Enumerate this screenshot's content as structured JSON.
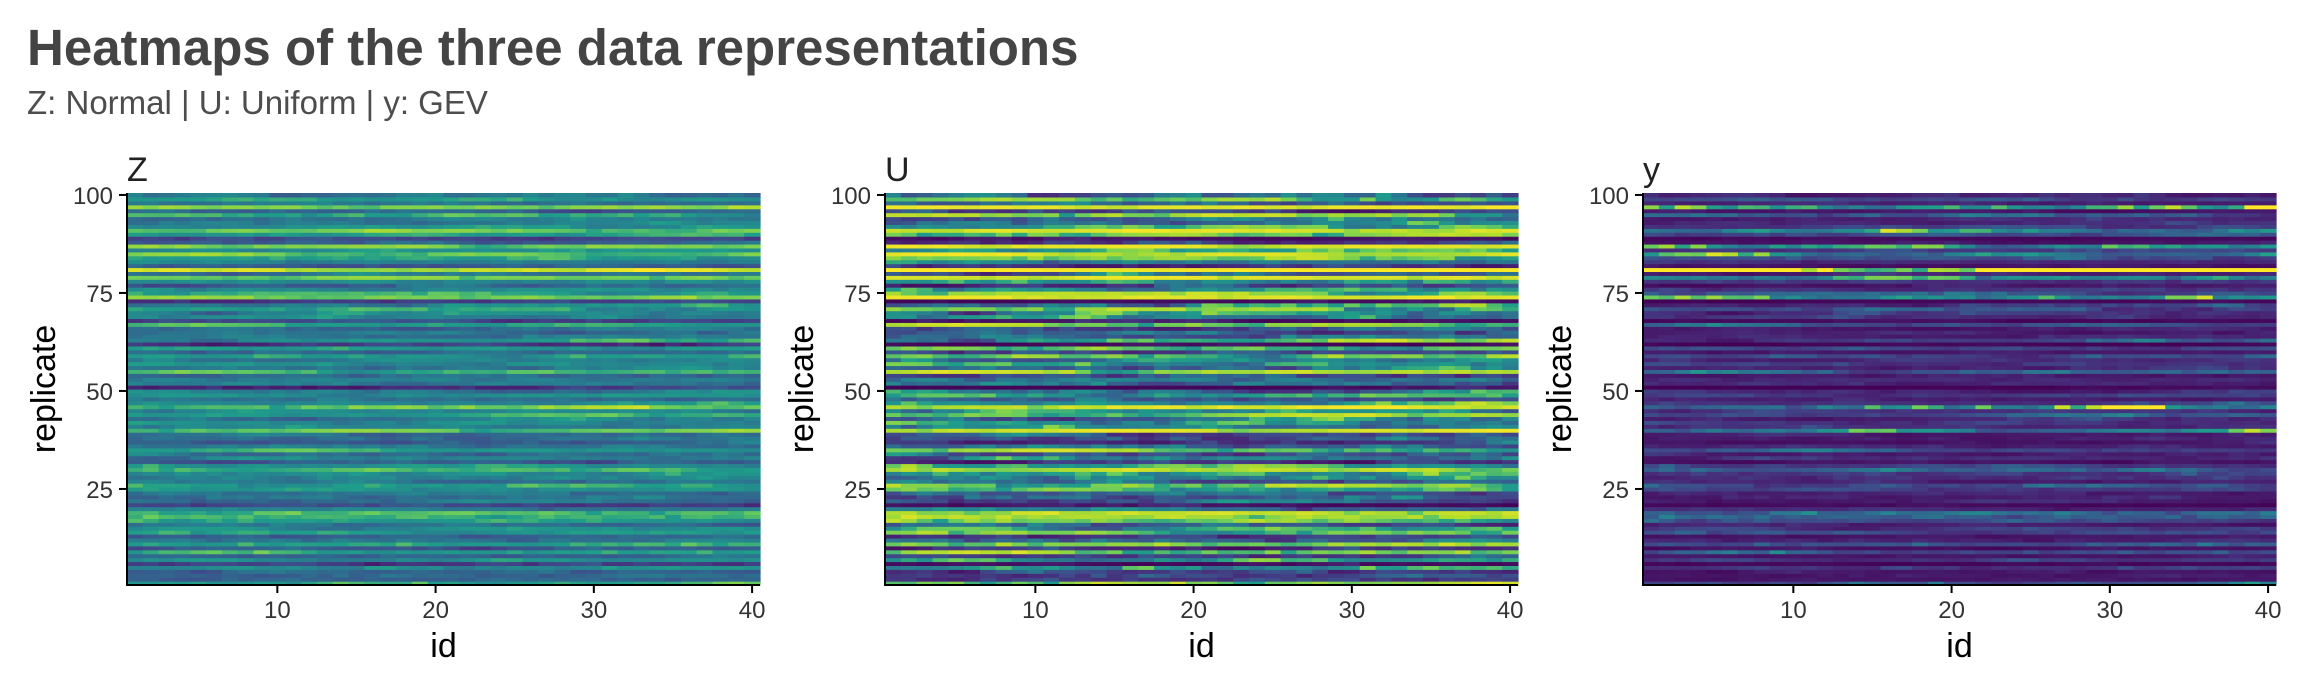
{
  "title": "Heatmaps of the three data representations",
  "subtitle": "Z: Normal | U: Uniform | y: GEV",
  "colors": {
    "palette": "viridis",
    "low": "#440154",
    "mid": "#21918c",
    "high": "#fde725",
    "axis": "#000000",
    "title_text": "#444444"
  },
  "chart_data": [
    {
      "type": "heatmap",
      "panel_title": "Z",
      "distribution": "Normal",
      "xlabel": "id",
      "ylabel": "replicate",
      "xlim": [
        0.5,
        40.5
      ],
      "ylim": [
        0.5,
        100.5
      ],
      "x_ticks": [
        10,
        20,
        30,
        40
      ],
      "y_ticks": [
        25,
        50,
        75,
        100
      ],
      "n_ids": 40,
      "n_replicates": 100,
      "value_range": [
        -3,
        3
      ],
      "notes": "values per replicate row vary mostly by row; bright row near replicate 81",
      "grid": false
    },
    {
      "type": "heatmap",
      "panel_title": "U",
      "distribution": "Uniform",
      "xlabel": "id",
      "ylabel": "replicate",
      "xlim": [
        0.5,
        40.5
      ],
      "ylim": [
        0.5,
        100.5
      ],
      "x_ticks": [
        10,
        20,
        30,
        40
      ],
      "y_ticks": [
        25,
        50,
        75,
        100
      ],
      "n_ids": 40,
      "n_replicates": 100,
      "value_range": [
        0,
        1
      ],
      "grid": false
    },
    {
      "type": "heatmap",
      "panel_title": "y",
      "distribution": "GEV",
      "xlabel": "id",
      "ylabel": "replicate",
      "xlim": [
        0.5,
        40.5
      ],
      "ylim": [
        0.5,
        100.5
      ],
      "x_ticks": [
        10,
        20,
        30,
        40
      ],
      "y_ticks": [
        25,
        50,
        75,
        100
      ],
      "n_ids": 40,
      "n_replicates": 100,
      "value_range": [
        -2,
        10
      ],
      "notes": "mostly low values; bright streak at replicate 81 for ids above 22",
      "grid": false
    }
  ]
}
